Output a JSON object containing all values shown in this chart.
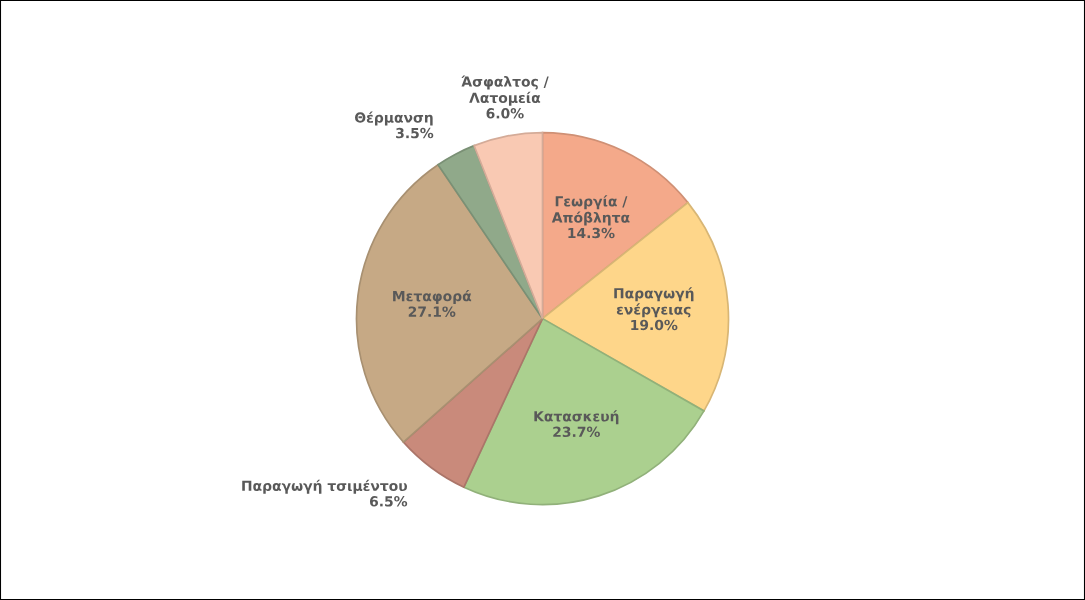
{
  "chart_data": {
    "type": "pie",
    "categories": [
      "Γεωργία /\nΑπόβλητα",
      "Παραγωγή\nενέργειας",
      "Κατασκευή",
      "Παραγωγή τσιμέντου",
      "Μεταφορά",
      "Θέρμανση",
      "Άσφαλτος /\nΛατομεία"
    ],
    "values": [
      14.3,
      19.0,
      23.7,
      6.5,
      27.1,
      3.5,
      6.0
    ],
    "value_labels": [
      "14.3%",
      "19.0%",
      "23.7%",
      "6.5%",
      "27.1%",
      "3.5%",
      "6.0%"
    ],
    "colors": [
      "#f4a98a",
      "#fed68a",
      "#abd08f",
      "#c98a7b",
      "#c6a985",
      "#90a98a",
      "#f9c9b3"
    ]
  }
}
